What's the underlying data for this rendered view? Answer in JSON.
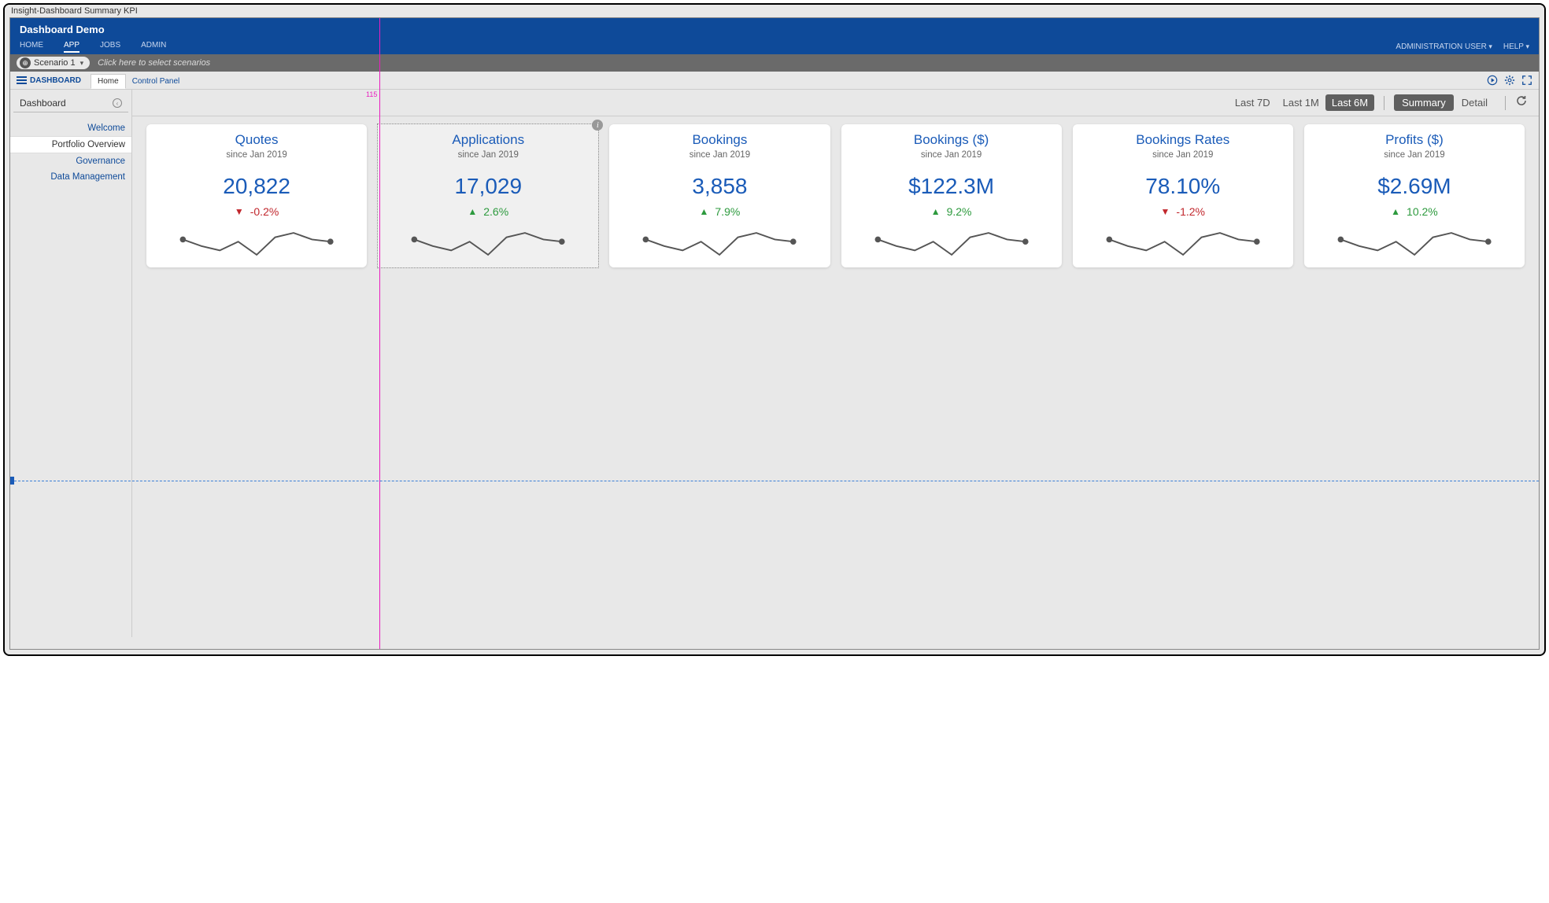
{
  "window": {
    "title": "Insight-Dashboard Summary KPI"
  },
  "header": {
    "app_title": "Dashboard Demo",
    "nav": [
      "HOME",
      "APP",
      "JOBS",
      "ADMIN"
    ],
    "active_nav_index": 1,
    "user_label": "ADMINISTRATION USER",
    "help_label": "HELP"
  },
  "scenario": {
    "pill_label": "Scenario 1",
    "hint": "Click here to select scenarios"
  },
  "sub_tabs": {
    "dash_label": "DASHBOARD",
    "tabs": [
      "Home",
      "Control Panel"
    ],
    "active_index": 0
  },
  "sidebar": {
    "title": "Dashboard",
    "items": [
      "Welcome",
      "Portfolio Overview",
      "Governance",
      "Data Management"
    ],
    "active_index": 1
  },
  "filters": {
    "time_ranges": [
      "Last 7D",
      "Last 1M",
      "Last 6M"
    ],
    "active_time_index": 2,
    "views": [
      "Summary",
      "Detail"
    ],
    "active_view_index": 0
  },
  "kpi_cards": [
    {
      "title": "Quotes",
      "subtitle": "since Jan 2019",
      "value": "20,822",
      "delta_pct": "-0.2%",
      "direction": "down",
      "spark": [
        14,
        11,
        9,
        13,
        7,
        15,
        17,
        14,
        13
      ]
    },
    {
      "title": "Applications",
      "subtitle": "since Jan 2019",
      "value": "17,029",
      "delta_pct": "2.6%",
      "direction": "up",
      "spark": [
        14,
        11,
        9,
        13,
        7,
        15,
        17,
        14,
        13
      ],
      "selected": true
    },
    {
      "title": "Bookings",
      "subtitle": "since Jan 2019",
      "value": "3,858",
      "delta_pct": "7.9%",
      "direction": "up",
      "spark": [
        14,
        11,
        9,
        13,
        7,
        15,
        17,
        14,
        13
      ]
    },
    {
      "title": "Bookings ($)",
      "subtitle": "since Jan 2019",
      "value": "$122.3M",
      "delta_pct": "9.2%",
      "direction": "up",
      "spark": [
        14,
        11,
        9,
        13,
        7,
        15,
        17,
        14,
        13
      ]
    },
    {
      "title": "Bookings Rates",
      "subtitle": "since Jan 2019",
      "value": "78.10%",
      "delta_pct": "-1.2%",
      "direction": "down",
      "spark": [
        14,
        11,
        9,
        13,
        7,
        15,
        17,
        14,
        13
      ]
    },
    {
      "title": "Profits ($)",
      "subtitle": "since Jan 2019",
      "value": "$2.69M",
      "delta_pct": "10.2%",
      "direction": "up",
      "spark": [
        14,
        11,
        9,
        13,
        7,
        15,
        17,
        14,
        13
      ]
    }
  ],
  "spark_style": {
    "stroke": "#555555",
    "dot_fill": "#555555",
    "width": 160,
    "height": 30
  },
  "colors": {
    "header_bg": "#0e4a99",
    "link_blue": "#1a5bb8",
    "up_green": "#2d9a3e",
    "down_red": "#c1272d",
    "guide_pink": "#e91ebf",
    "guide_blue": "#3a7ed6"
  },
  "guides": {
    "v_label": "115"
  }
}
